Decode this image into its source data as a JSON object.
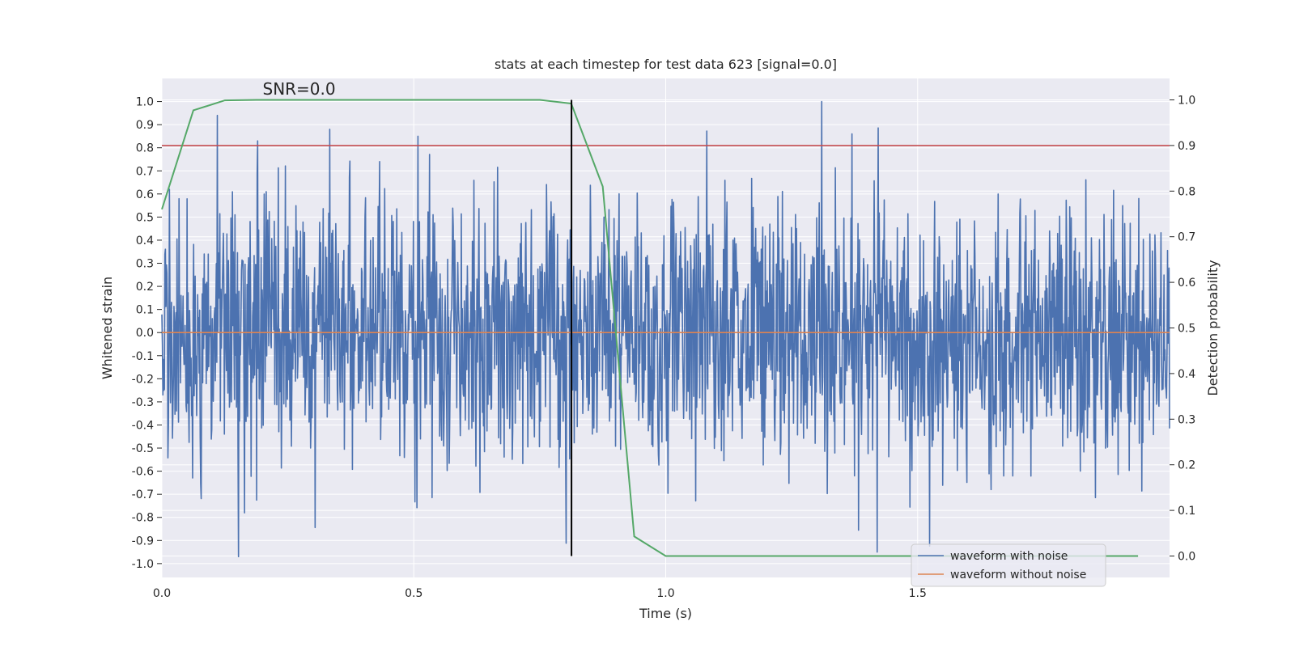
{
  "chart_data": {
    "type": "line",
    "title": "stats at each timestep for test data 623 [signal=0.0]",
    "xlabel": "Time (s)",
    "ylabel_left": "Whitened strain",
    "ylabel_right": "Detection probability",
    "xlim": [
      0.0,
      2.0
    ],
    "ylim_left": [
      -1.06,
      1.1
    ],
    "ylim_right": [
      -0.047,
      1.047
    ],
    "x_ticks": [
      0.0,
      0.5,
      1.0,
      1.5
    ],
    "x_tick_labels": [
      "0.0",
      "0.5",
      "1.0",
      "1.5"
    ],
    "y_left_ticks": [
      1.0,
      0.9,
      0.8,
      0.7,
      0.6,
      0.5,
      0.4,
      0.3,
      0.2,
      0.1,
      0.0,
      -0.1,
      -0.2,
      -0.3,
      -0.4,
      -0.5,
      -0.6,
      -0.7,
      -0.8,
      -0.9,
      -1.0
    ],
    "y_left_tick_labels": [
      "1.0",
      "0.9",
      "0.8",
      "0.7",
      "0.6",
      "0.5",
      "0.4",
      "0.3",
      "0.2",
      "0.1",
      "0.0",
      "-0.1",
      "-0.2",
      "-0.3",
      "-0.4",
      "-0.5",
      "-0.6",
      "-0.7",
      "-0.8",
      "-0.9",
      "-1.0"
    ],
    "y_right_ticks": [
      1.0,
      0.9,
      0.8,
      0.7,
      0.6,
      0.5,
      0.4,
      0.3,
      0.2,
      0.1,
      0.0
    ],
    "y_right_tick_labels": [
      "1.0",
      "0.9",
      "0.8",
      "0.7",
      "0.6",
      "0.5",
      "0.4",
      "0.3",
      "0.2",
      "0.1",
      "0.0"
    ],
    "annotation": "SNR=0.0",
    "threshold_right": 0.9,
    "marker_time": 0.813,
    "series": [
      {
        "name": "waveform with noise",
        "axis": "left",
        "color": "#4c72b0",
        "kind": "noise",
        "n_points": 2000,
        "seed": 623,
        "peaks": [
          [
            0.015,
            0.62
          ],
          [
            0.11,
            0.94
          ],
          [
            0.152,
            -0.97
          ],
          [
            0.19,
            0.83
          ],
          [
            0.333,
            0.88
          ],
          [
            0.508,
            0.85
          ],
          [
            1.31,
            1.0
          ],
          [
            1.37,
            0.86
          ],
          [
            1.42,
            -0.95
          ]
        ]
      },
      {
        "name": "waveform without noise",
        "axis": "left",
        "color": "#dd8452",
        "kind": "flat",
        "values": [
          0.0,
          0.0
        ]
      },
      {
        "name": "detection probability",
        "axis": "right",
        "color": "#55a868",
        "kind": "line",
        "x": [
          0.0,
          0.0625,
          0.125,
          0.1875,
          0.25,
          0.3125,
          0.375,
          0.4375,
          0.5,
          0.5625,
          0.625,
          0.6875,
          0.75,
          0.8125,
          0.875,
          0.9375,
          1.0,
          1.0625,
          1.125,
          1.1875,
          1.25,
          1.3125,
          1.375,
          1.4375,
          1.5,
          1.5625,
          1.625,
          1.6875,
          1.75,
          1.8125,
          1.875,
          1.9375
        ],
        "y": [
          0.76,
          0.977,
          0.999,
          1.0,
          1.0,
          1.0,
          1.0,
          1.0,
          1.0,
          1.0,
          1.0,
          1.0,
          1.0,
          0.992,
          0.81,
          0.043,
          0.0,
          0.0,
          0.0,
          0.0,
          0.0,
          0.0,
          0.0,
          0.0,
          0.0,
          0.0,
          0.0,
          0.0,
          0.0,
          0.0,
          0.0,
          0.0
        ]
      }
    ],
    "legend": {
      "placement": "bottom-right",
      "entries": [
        {
          "label": "waveform with noise",
          "color": "#4c72b0"
        },
        {
          "label": "waveform without noise",
          "color": "#dd8452"
        }
      ]
    },
    "colors": {
      "plot_background": "#eaeaf2",
      "grid": "#ffffff",
      "threshold": "#c44e52",
      "marker": "#000000"
    }
  }
}
